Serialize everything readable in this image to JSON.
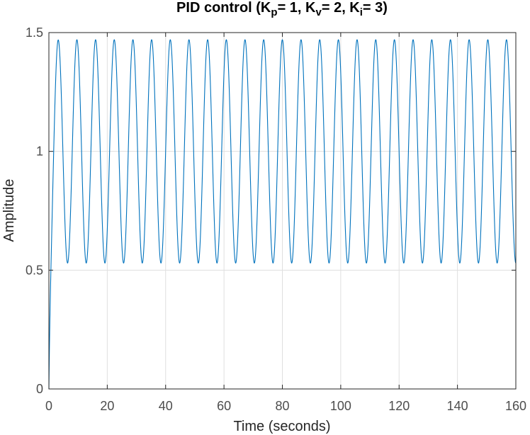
{
  "chart_data": {
    "type": "line",
    "title": "PID control (K",
    "title_parts": [
      {
        "text": "PID control (K",
        "sub": false
      },
      {
        "text": "p",
        "sub": true
      },
      {
        "text": "= 1, K",
        "sub": false
      },
      {
        "text": "v",
        "sub": true
      },
      {
        "text": "= 2, K",
        "sub": false
      },
      {
        "text": "i",
        "sub": true
      },
      {
        "text": "= 3)",
        "sub": false
      }
    ],
    "xlabel": "Time (seconds)",
    "ylabel": "Amplitude",
    "xlim": [
      0,
      160
    ],
    "ylim": [
      0,
      1.5
    ],
    "xticks": [
      0,
      20,
      40,
      60,
      80,
      100,
      120,
      140,
      160
    ],
    "xtick_labels": [
      "0",
      "20",
      "40",
      "60",
      "80",
      "100",
      "120",
      "140",
      "160"
    ],
    "yticks": [
      0,
      0.5,
      1,
      1.5
    ],
    "ytick_labels": [
      "0",
      "0.5",
      "1",
      "1.5"
    ],
    "grid": true,
    "series": [
      {
        "color": "#0072bd",
        "model": "step response of sustained oscillation: y(t) = 1 - 0.47*cos(w*t) - 0.53*exp(-2t), w = 2*pi/6.4",
        "steady_state_center": 1.0,
        "oscillation_amplitude": 0.47,
        "period": 6.4,
        "peak_value": 1.47,
        "trough_value": 0.53
      }
    ]
  }
}
